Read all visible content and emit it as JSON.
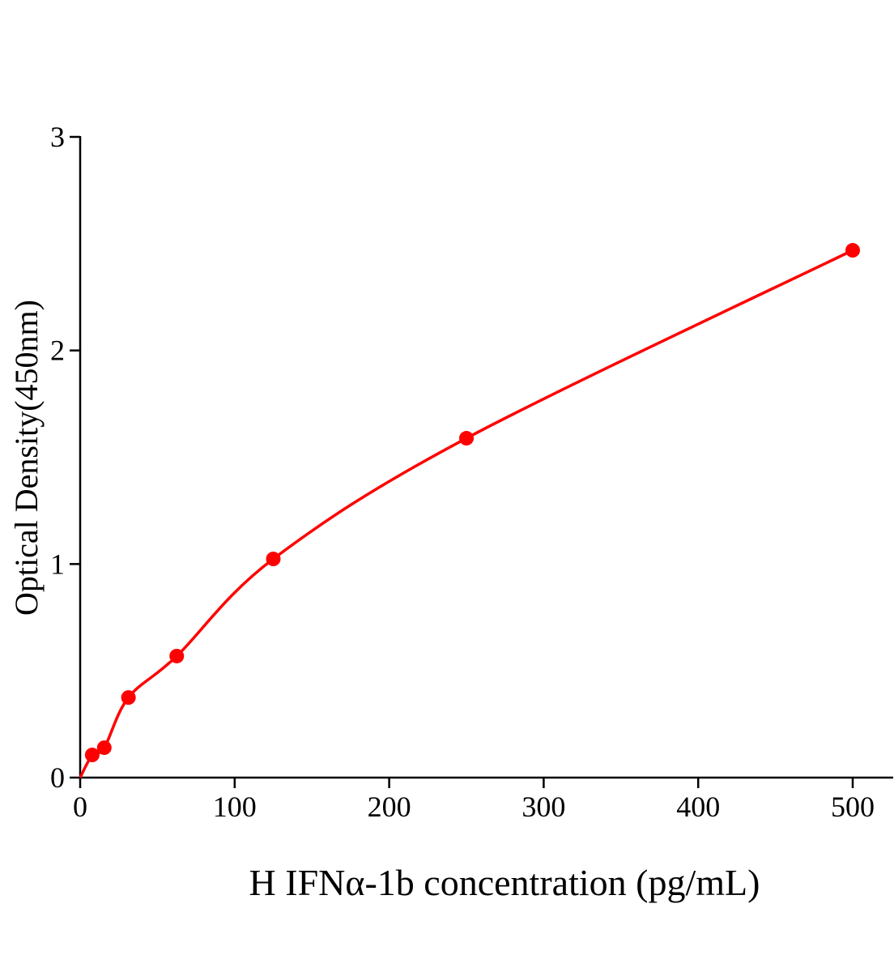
{
  "chart_data": {
    "type": "scatter",
    "title": "",
    "xlabel": "H IFNα-1b concentration (pg/mL)",
    "ylabel": "Optical Density(450nm)",
    "xlim": [
      0,
      500
    ],
    "ylim": [
      0,
      3
    ],
    "x_ticks": [
      "0",
      "100",
      "200",
      "300",
      "400",
      "500"
    ],
    "y_ticks": [
      "0",
      "1",
      "2",
      "3"
    ],
    "grid": false,
    "legend": "none",
    "color": "#ff0000",
    "fit_curve": true,
    "series": [
      {
        "x": [
          7.8,
          15.6,
          31.25,
          62.5,
          125,
          250,
          500
        ],
        "y": [
          0.106,
          0.14,
          0.375,
          0.569,
          1.024,
          1.589,
          2.469
        ]
      }
    ]
  }
}
